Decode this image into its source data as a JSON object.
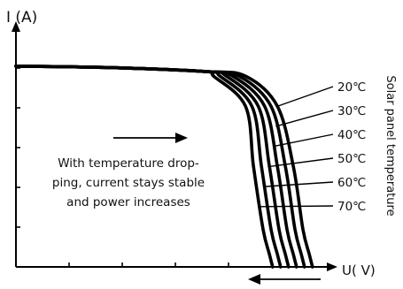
{
  "chart_data": {
    "type": "line",
    "title": "",
    "ylabel": "I (A)",
    "xlabel": "U( V)",
    "legend_title": "Solar panel temperature",
    "xlim": [
      0,
      100
    ],
    "ylim": [
      0,
      100
    ],
    "grid": false,
    "annotation": [
      "With temperature drop-",
      "ping, current stays stable",
      "and power increases"
    ],
    "series": [
      {
        "name": "20℃",
        "x": [
          0,
          30,
          60,
          72,
          82,
          87,
          90,
          92,
          93
        ],
        "y": [
          80,
          79.4,
          77.8,
          76,
          64,
          40,
          15,
          5,
          0
        ]
      },
      {
        "name": "30℃",
        "x": [
          0,
          30,
          60,
          70,
          80,
          84.5,
          87.5,
          89.5,
          90.5
        ],
        "y": [
          80,
          79.4,
          77.8,
          76,
          64,
          40,
          15,
          5,
          0
        ]
      },
      {
        "name": "40℃",
        "x": [
          0,
          30,
          60,
          68,
          78,
          82,
          85,
          87,
          88
        ],
        "y": [
          80,
          79.4,
          77.8,
          76,
          64,
          40,
          15,
          5,
          0
        ]
      },
      {
        "name": "50℃",
        "x": [
          0,
          30,
          60,
          66,
          76,
          79.5,
          82.5,
          84.5,
          85.5
        ],
        "y": [
          80,
          79.4,
          77.8,
          76,
          64,
          40,
          15,
          5,
          0
        ]
      },
      {
        "name": "60℃",
        "x": [
          0,
          30,
          60,
          64,
          74,
          77,
          80,
          82,
          83
        ],
        "y": [
          80,
          79.4,
          77.8,
          76,
          64,
          40,
          15,
          5,
          0
        ]
      },
      {
        "name": "70℃",
        "x": [
          0,
          30,
          60,
          62,
          72,
          74.5,
          77.5,
          79.5,
          80.5
        ],
        "y": [
          80,
          79.4,
          77.8,
          76,
          64,
          40,
          15,
          5,
          0
        ]
      }
    ],
    "arrows": [
      {
        "name": "temperature-drop-arrow",
        "direction": "right"
      },
      {
        "name": "voltage-shift-arrow",
        "direction": "left"
      }
    ],
    "colors": {
      "curve": "#000000",
      "axis": "#000000",
      "text": "#111111"
    }
  }
}
